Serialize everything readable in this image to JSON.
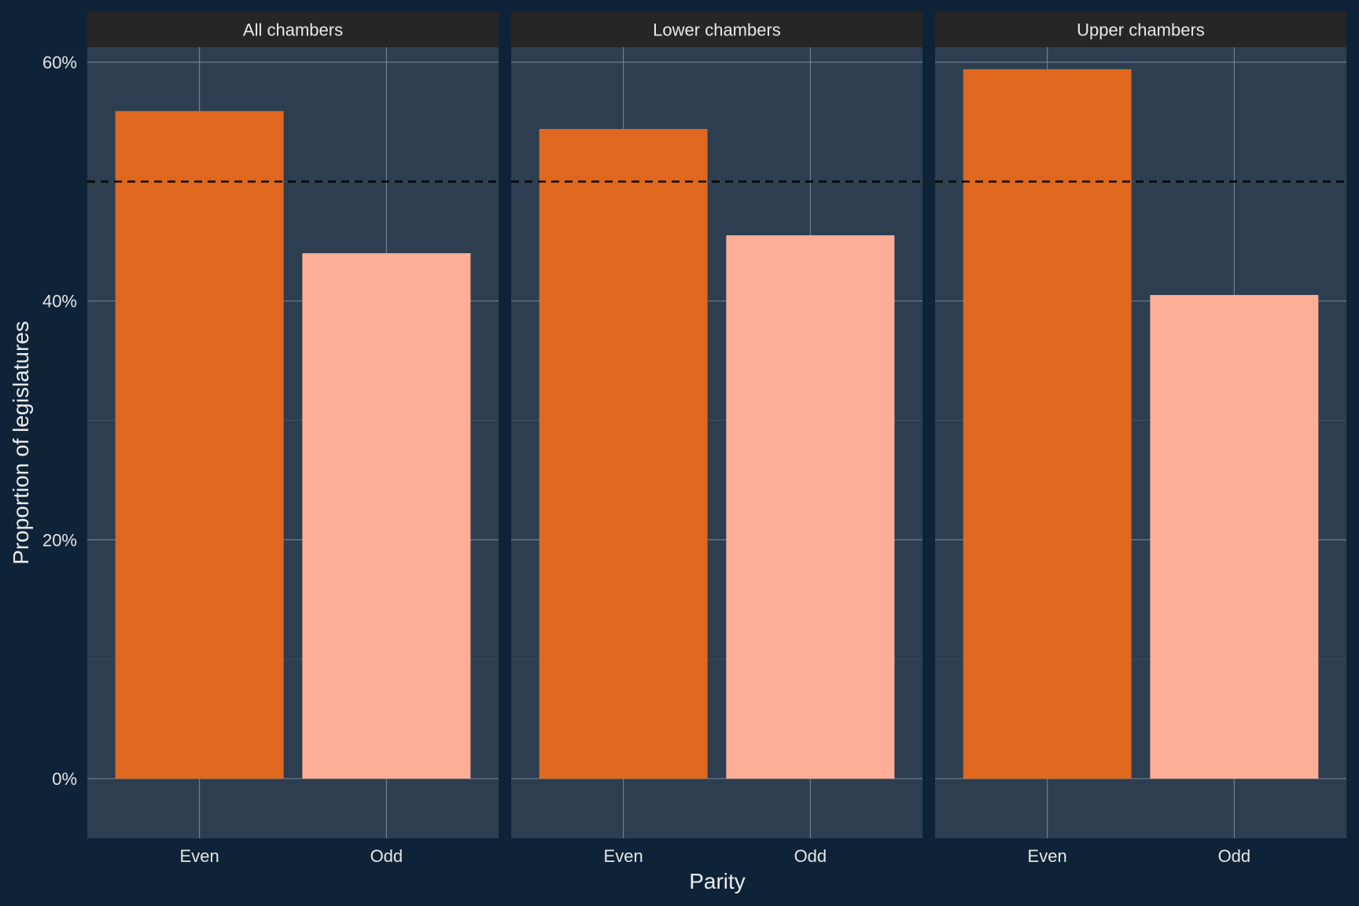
{
  "chart_data": {
    "type": "bar",
    "xlabel": "Parity",
    "ylabel": "Proportion of legislatures",
    "ylim": [
      -0.05,
      0.6125
    ],
    "yticks": [
      0,
      0.2,
      0.4,
      0.6
    ],
    "ytick_labels": [
      "0%",
      "20%",
      "40%",
      "60%"
    ],
    "reference_line": {
      "y": 0.5,
      "style": "dashed",
      "color": "#000000"
    },
    "categories": [
      "Even",
      "Odd"
    ],
    "colors": {
      "Even": "#df681e",
      "Odd": "#feae97"
    },
    "facets": [
      {
        "title": "All chambers",
        "values": [
          0.559,
          0.44
        ]
      },
      {
        "title": "Lower chambers",
        "values": [
          0.544,
          0.455
        ]
      },
      {
        "title": "Upper chambers",
        "values": [
          0.594,
          0.405
        ]
      }
    ],
    "grid": true,
    "legend": "none"
  },
  "theme": {
    "background": "#0f2338",
    "panel": "#2c3e50",
    "strip": "#262626",
    "grid_major": "#6f7f8f",
    "grid_minor": "#3d5063"
  }
}
